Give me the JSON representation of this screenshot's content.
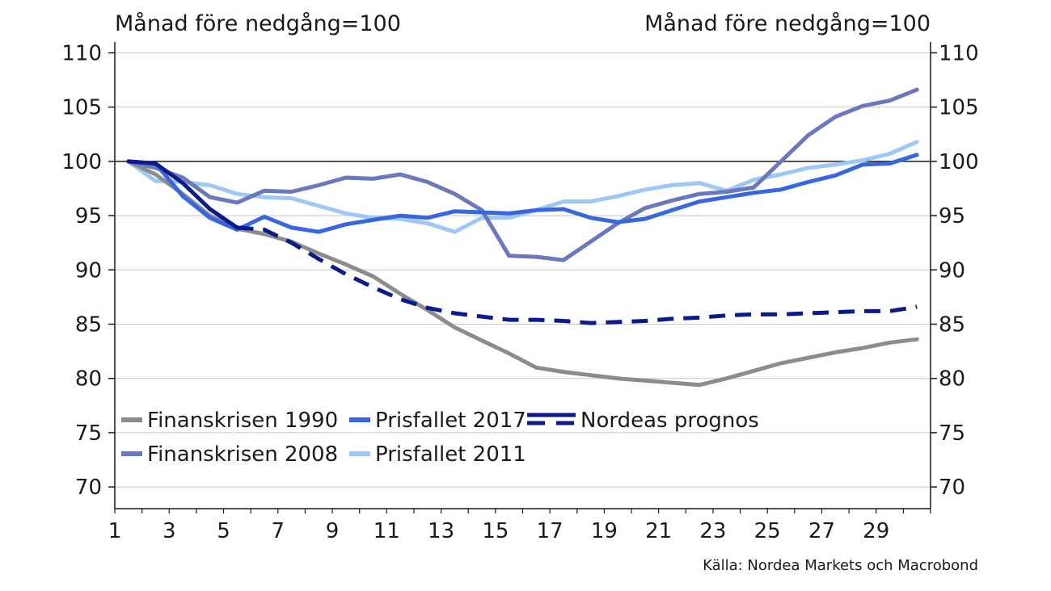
{
  "chart_data": {
    "type": "line",
    "unit_label_left": "Månad före nedgång=100",
    "unit_label_right": "Månad före nedgång=100",
    "source": "Källa: Nordea Markets och Macrobond",
    "xlim": [
      1,
      31
    ],
    "x_ticks": [
      1,
      3,
      5,
      7,
      9,
      11,
      13,
      15,
      17,
      19,
      21,
      23,
      25,
      27,
      29
    ],
    "ylim": [
      68,
      111
    ],
    "y_ticks": [
      70,
      75,
      80,
      85,
      90,
      95,
      100,
      105,
      110
    ],
    "grid": "horizontal",
    "reference_line": 100,
    "legend_position": "bottom-left",
    "colors": {
      "finanskrisen_1990": "#8c8c8c",
      "finanskrisen_2008": "#6b78bd",
      "prisfallet_2017": "#3867dd",
      "prisfallet_2011": "#9dc8f5",
      "nordeas_prognos": "#0b1a8c"
    },
    "series": [
      {
        "name": "Finanskrisen 1990",
        "color": "#8c8c8c",
        "style": "solid",
        "x": [
          1.5,
          2.5,
          3.5,
          4.5,
          5.5,
          6.5,
          7.5,
          8.5,
          9.5,
          10.5,
          11.5,
          12.5,
          13.5,
          14.5,
          15.5,
          16.5,
          17.5,
          18.5,
          19.5,
          20.5,
          21.5,
          22.5,
          23.5,
          24.5,
          25.5,
          26.5,
          27.5,
          28.5,
          29.5,
          30.5
        ],
        "values": [
          100,
          98.8,
          97,
          95,
          93.8,
          93.3,
          92.6,
          91.5,
          90.5,
          89.4,
          87.8,
          86.3,
          84.7,
          83.5,
          82.3,
          81,
          80.6,
          80.3,
          80,
          79.8,
          79.6,
          79.4,
          80,
          80.7,
          81.4,
          81.9,
          82.4,
          82.8,
          83.3,
          83.6
        ]
      },
      {
        "name": "Finanskrisen 2008",
        "color": "#6b78bd",
        "style": "solid",
        "x": [
          1.5,
          2.5,
          3.5,
          4.5,
          5.5,
          6.5,
          7.5,
          8.5,
          9.5,
          10.5,
          11.5,
          12.5,
          13.5,
          14.5,
          15.5,
          16.5,
          17.5,
          18.5,
          19.5,
          20.5,
          21.5,
          22.5,
          23.5,
          24.5,
          25.5,
          26.5,
          27.5,
          28.5,
          29.5,
          30.5
        ],
        "values": [
          100,
          99.4,
          98.5,
          96.7,
          96.2,
          97.3,
          97.2,
          97.8,
          98.5,
          98.4,
          98.8,
          98.1,
          97,
          95.5,
          91.3,
          91.2,
          90.9,
          92.6,
          94.3,
          95.7,
          96.4,
          97,
          97.2,
          97.6,
          100,
          102.4,
          104.1,
          105.1,
          105.6,
          106.6
        ]
      },
      {
        "name": "Prisfallet 2017",
        "color": "#3867dd",
        "style": "solid",
        "x": [
          1.5,
          2.5,
          3.5,
          4.5,
          5.5,
          6.5,
          7.5,
          8.5,
          9.5,
          10.5,
          11.5,
          12.5,
          13.5,
          14.5,
          15.5,
          16.5,
          17.5,
          18.5,
          19.5,
          20.5,
          21.5,
          22.5,
          23.5,
          24.5,
          25.5,
          26.5,
          27.5,
          28.5,
          29.5,
          30.5
        ],
        "values": [
          100,
          99.8,
          96.8,
          94.8,
          93.7,
          94.9,
          93.9,
          93.5,
          94.2,
          94.6,
          95,
          94.8,
          95.4,
          95.3,
          95.2,
          95.5,
          95.6,
          94.8,
          94.4,
          94.7,
          95.5,
          96.3,
          96.7,
          97.1,
          97.4,
          98.1,
          98.7,
          99.7,
          99.8,
          100.6
        ]
      },
      {
        "name": "Prisfallet 2011",
        "color": "#9dc8f5",
        "style": "solid",
        "x": [
          1.5,
          2.5,
          3.5,
          4.5,
          5.5,
          6.5,
          7.5,
          8.5,
          9.5,
          10.5,
          11.5,
          12.5,
          13.5,
          14.5,
          15.5,
          16.5,
          17.5,
          18.5,
          19.5,
          20.5,
          21.5,
          22.5,
          23.5,
          24.5,
          25.5,
          26.5,
          27.5,
          28.5,
          29.5,
          30.5
        ],
        "values": [
          100,
          98.2,
          98.1,
          97.8,
          97,
          96.7,
          96.6,
          95.9,
          95.2,
          94.8,
          94.7,
          94.3,
          93.5,
          94.8,
          94.8,
          95.5,
          96.3,
          96.3,
          96.8,
          97.4,
          97.8,
          98,
          97.3,
          98.3,
          98.8,
          99.4,
          99.7,
          100.1,
          100.7,
          101.8
        ]
      },
      {
        "name": "Nordeas prognos",
        "color": "#0b1a8c",
        "style": "solid-then-dashed",
        "dash_from_x": 5.5,
        "x": [
          1.5,
          2.5,
          3.5,
          4.5,
          5.5,
          6.5,
          7.5,
          8.5,
          9.5,
          10.5,
          11.5,
          12.5,
          13.5,
          14.5,
          15.5,
          16.5,
          17.5,
          18.5,
          19.5,
          20.5,
          21.5,
          22.5,
          23.5,
          24.5,
          25.5,
          26.5,
          27.5,
          28.5,
          29.5,
          30.5
        ],
        "values": [
          100,
          99.8,
          98,
          95.6,
          93.9,
          93.7,
          92.5,
          91,
          89.6,
          88.4,
          87.3,
          86.5,
          86,
          85.7,
          85.4,
          85.4,
          85.3,
          85.1,
          85.2,
          85.3,
          85.5,
          85.6,
          85.8,
          85.9,
          85.9,
          86,
          86.1,
          86.2,
          86.2,
          86.6
        ]
      }
    ],
    "legend": [
      {
        "label": "Finanskrisen 1990",
        "series": 0
      },
      {
        "label": "Prisfallet 2017",
        "series": 2
      },
      {
        "label": "Nordeas prognos",
        "series": 4
      },
      {
        "label": "Finanskrisen 2008",
        "series": 1
      },
      {
        "label": "Prisfallet 2011",
        "series": 3
      }
    ]
  }
}
